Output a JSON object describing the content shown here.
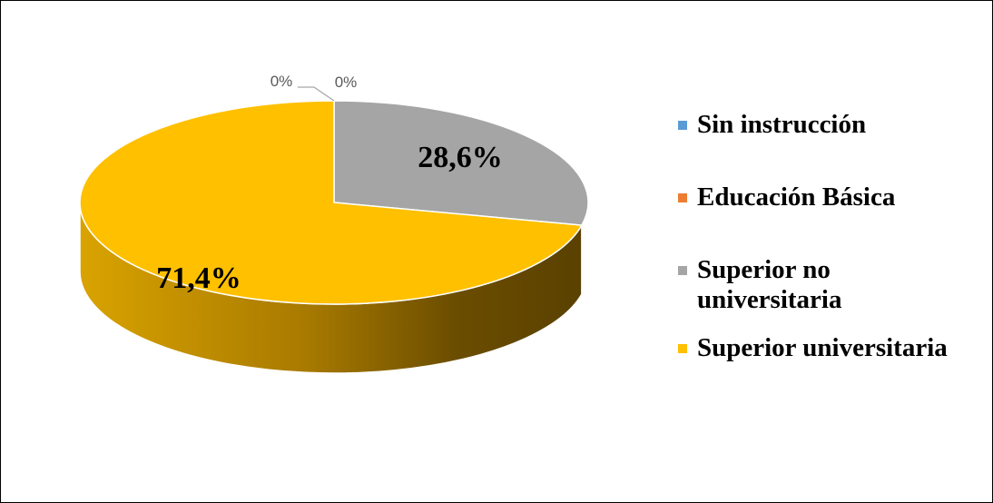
{
  "chart_data": {
    "type": "pie",
    "style": "3d",
    "categories": [
      "Sin instrucción",
      "Educación Básica",
      "Superior no universitaria",
      "Superior universitaria"
    ],
    "values": [
      0,
      0,
      28.6,
      71.4
    ],
    "data_labels": [
      "0%",
      "0%",
      "28,6%",
      "71,4%"
    ],
    "colors": [
      "#5B9BD5",
      "#ED7D31",
      "#A5A5A5",
      "#FFC000"
    ],
    "legend_position": "right"
  },
  "legend": {
    "items": [
      {
        "label": "Sin instrucción",
        "color": "#5B9BD5"
      },
      {
        "label": "Educación Básica",
        "color": "#ED7D31"
      },
      {
        "label": "Superior no universitaria",
        "color": "#A5A5A5"
      },
      {
        "label": "Superior universitaria",
        "color": "#FFC000"
      }
    ]
  }
}
